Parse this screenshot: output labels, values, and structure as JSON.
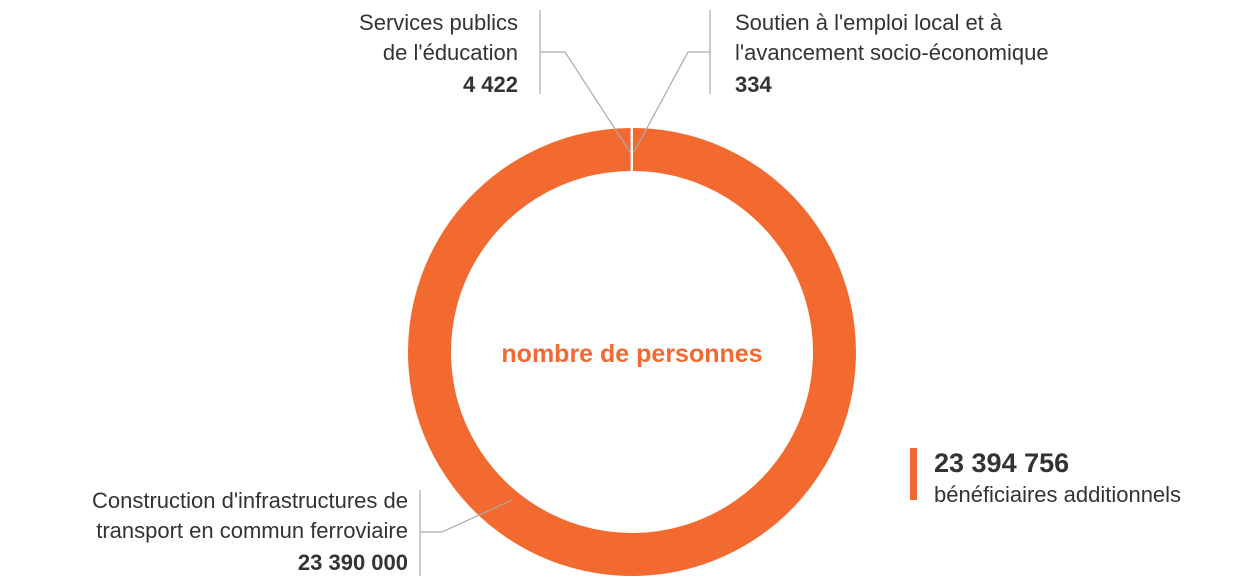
{
  "chart_data": {
    "type": "donut",
    "center_label": "nombre de personnes",
    "categories": [
      [
        "Construction d'infrastructures de",
        "transport en commun ferroviaire"
      ],
      [
        "Services publics",
        "de l'éducation"
      ],
      [
        "Soutien à l'emploi local et à",
        "l'avancement socio-économique"
      ]
    ],
    "values": [
      23390000,
      4422,
      334
    ],
    "value_labels": [
      "23 390 000",
      "4 422",
      "334"
    ],
    "colors": [
      "#f26a30",
      "#f26a30",
      "#f26a30"
    ],
    "total": 23394756,
    "total_label": "23 394 756",
    "total_caption": "bénéficiaires additionnels"
  }
}
